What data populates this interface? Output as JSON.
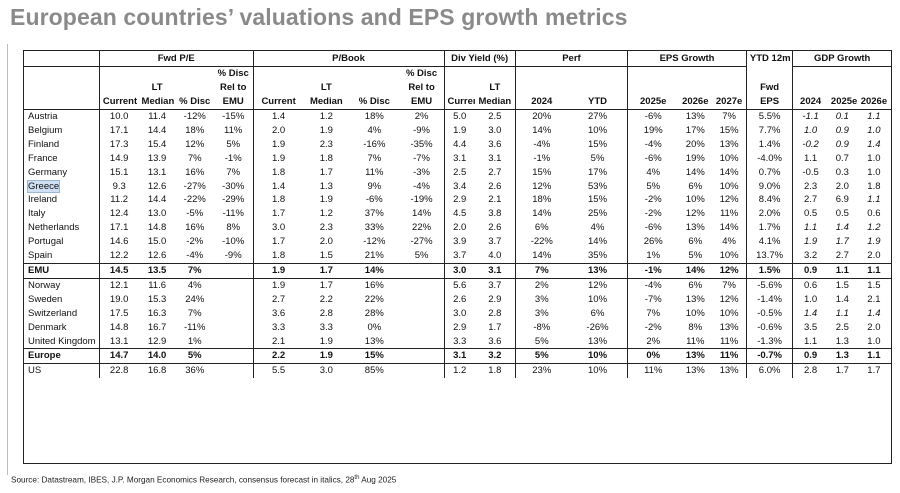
{
  "title": "European countries’ valuations and EPS growth metrics",
  "headers": {
    "groups": [
      "Fwd P/E",
      "P/Book",
      "Div Yield (%)",
      "Perf",
      "EPS Growth",
      "YTD 12m",
      "GDP Growth"
    ],
    "row1": [
      "",
      "",
      "",
      "% Disc",
      "",
      "",
      "",
      "% Disc",
      "",
      "",
      "",
      "",
      "",
      "",
      "",
      "",
      "",
      "",
      "",
      ""
    ],
    "row2": [
      "",
      "LT",
      "",
      "Rel to",
      "",
      "LT",
      "",
      "Rel to",
      "",
      "LT",
      "",
      "",
      "",
      "",
      "",
      "Fwd",
      "",
      "",
      ""
    ],
    "row3": [
      "Current",
      "Median",
      "% Disc",
      "EMU",
      "Current",
      "Median",
      "% Disc",
      "EMU",
      "Current",
      "Median",
      "2024",
      "YTD",
      "2025e",
      "2026e",
      "2027e",
      "EPS",
      "2024",
      "2025e",
      "2026e"
    ]
  },
  "rows": [
    {
      "name": "Austria",
      "v": [
        "10.0",
        "11.4",
        "-12%",
        "-15%",
        "1.4",
        "1.2",
        "18%",
        "2%",
        "5.0",
        "2.5",
        "20%",
        "27%",
        "-6%",
        "13%",
        "7%",
        "5.5%",
        "-1.1",
        "0.1",
        "1.1"
      ]
    },
    {
      "name": "Belgium",
      "v": [
        "17.1",
        "14.4",
        "18%",
        "11%",
        "2.0",
        "1.9",
        "4%",
        "-9%",
        "1.9",
        "3.0",
        "14%",
        "10%",
        "19%",
        "17%",
        "15%",
        "7.7%",
        "1.0",
        "0.9",
        "1.0"
      ]
    },
    {
      "name": "Finland",
      "v": [
        "17.3",
        "15.4",
        "12%",
        "5%",
        "1.9",
        "2.3",
        "-16%",
        "-35%",
        "4.4",
        "3.6",
        "-4%",
        "15%",
        "-4%",
        "20%",
        "13%",
        "1.4%",
        "-0.2",
        "0.9",
        "1.4"
      ]
    },
    {
      "name": "France",
      "v": [
        "14.9",
        "13.9",
        "7%",
        "-1%",
        "1.9",
        "1.8",
        "7%",
        "-7%",
        "3.1",
        "3.1",
        "-1%",
        "5%",
        "-6%",
        "19%",
        "10%",
        "-4.0%",
        "1.1",
        "0.7",
        "1.0"
      ]
    },
    {
      "name": "Germany",
      "v": [
        "15.1",
        "13.1",
        "16%",
        "7%",
        "1.8",
        "1.7",
        "11%",
        "-3%",
        "2.5",
        "2.7",
        "15%",
        "17%",
        "4%",
        "14%",
        "14%",
        "0.7%",
        "-0.5",
        "0.3",
        "1.0"
      ]
    },
    {
      "name": "Greece",
      "v": [
        "9.3",
        "12.6",
        "-27%",
        "-30%",
        "1.4",
        "1.3",
        "9%",
        "-4%",
        "3.4",
        "2.6",
        "12%",
        "53%",
        "5%",
        "6%",
        "10%",
        "9.0%",
        "2.3",
        "2.0",
        "1.8"
      ]
    },
    {
      "name": "Ireland",
      "v": [
        "11.2",
        "14.4",
        "-22%",
        "-29%",
        "1.8",
        "1.9",
        "-6%",
        "-19%",
        "2.9",
        "2.1",
        "18%",
        "15%",
        "-2%",
        "10%",
        "12%",
        "8.4%",
        "2.7",
        "6.9",
        "1.1"
      ]
    },
    {
      "name": "Italy",
      "v": [
        "12.4",
        "13.0",
        "-5%",
        "-11%",
        "1.7",
        "1.2",
        "37%",
        "14%",
        "4.5",
        "3.8",
        "14%",
        "25%",
        "-2%",
        "12%",
        "11%",
        "2.0%",
        "0.5",
        "0.5",
        "0.6"
      ]
    },
    {
      "name": "Netherlands",
      "v": [
        "17.1",
        "14.8",
        "16%",
        "8%",
        "3.0",
        "2.3",
        "33%",
        "22%",
        "2.0",
        "2.6",
        "6%",
        "4%",
        "-6%",
        "13%",
        "14%",
        "1.7%",
        "1.1",
        "1.4",
        "1.2"
      ]
    },
    {
      "name": "Portugal",
      "v": [
        "14.6",
        "15.0",
        "-2%",
        "-10%",
        "1.7",
        "2.0",
        "-12%",
        "-27%",
        "3.9",
        "3.7",
        "-22%",
        "14%",
        "26%",
        "6%",
        "4%",
        "4.1%",
        "1.9",
        "1.7",
        "1.9"
      ]
    },
    {
      "name": "Spain",
      "v": [
        "12.2",
        "12.6",
        "-4%",
        "-9%",
        "1.8",
        "1.5",
        "21%",
        "5%",
        "3.7",
        "4.0",
        "14%",
        "35%",
        "1%",
        "5%",
        "10%",
        "13.7%",
        "3.2",
        "2.7",
        "2.0"
      ]
    },
    {
      "name": "EMU",
      "v": [
        "14.5",
        "13.5",
        "7%",
        "",
        "1.9",
        "1.7",
        "14%",
        "",
        "3.0",
        "3.1",
        "7%",
        "13%",
        "-1%",
        "14%",
        "12%",
        "1.5%",
        "0.9",
        "1.1",
        "1.1"
      ]
    },
    {
      "name": "Norway",
      "v": [
        "12.1",
        "11.6",
        "4%",
        "",
        "1.9",
        "1.7",
        "16%",
        "",
        "5.6",
        "3.7",
        "2%",
        "12%",
        "-4%",
        "6%",
        "7%",
        "-5.6%",
        "0.6",
        "1.5",
        "1.5"
      ]
    },
    {
      "name": "Sweden",
      "v": [
        "19.0",
        "15.3",
        "24%",
        "",
        "2.7",
        "2.2",
        "22%",
        "",
        "2.6",
        "2.9",
        "3%",
        "10%",
        "-7%",
        "13%",
        "12%",
        "-1.4%",
        "1.0",
        "1.4",
        "2.1"
      ]
    },
    {
      "name": "Switzerland",
      "v": [
        "17.5",
        "16.3",
        "7%",
        "",
        "3.6",
        "2.8",
        "28%",
        "",
        "3.0",
        "2.8",
        "3%",
        "6%",
        "7%",
        "10%",
        "10%",
        "-0.5%",
        "1.4",
        "1.1",
        "1.4"
      ]
    },
    {
      "name": "Denmark",
      "v": [
        "14.8",
        "16.7",
        "-11%",
        "",
        "3.3",
        "3.3",
        "0%",
        "",
        "2.9",
        "1.7",
        "-8%",
        "-26%",
        "-2%",
        "8%",
        "13%",
        "-0.6%",
        "3.5",
        "2.5",
        "2.0"
      ]
    },
    {
      "name": "United Kingdom",
      "v": [
        "13.1",
        "12.9",
        "1%",
        "",
        "2.1",
        "1.9",
        "13%",
        "",
        "3.3",
        "3.6",
        "5%",
        "13%",
        "2%",
        "11%",
        "11%",
        "-1.3%",
        "1.1",
        "1.3",
        "1.0"
      ]
    },
    {
      "name": "Europe",
      "v": [
        "14.7",
        "14.0",
        "5%",
        "",
        "2.2",
        "1.9",
        "15%",
        "",
        "3.1",
        "3.2",
        "5%",
        "10%",
        "0%",
        "13%",
        "11%",
        "-0.7%",
        "0.9",
        "1.3",
        "1.1"
      ]
    },
    {
      "name": "US",
      "v": [
        "22.8",
        "16.8",
        "36%",
        "",
        "5.5",
        "3.0",
        "85%",
        "",
        "1.2",
        "1.8",
        "23%",
        "10%",
        "11%",
        "13%",
        "13%",
        "6.0%",
        "2.8",
        "1.7",
        "1.7"
      ]
    }
  ],
  "source": {
    "prefix": "Source: Datastream, IBES, J.P. Morgan Economics Research, consensus forecast in italics, 28",
    "sup": "th",
    "suffix": " Aug 2025"
  }
}
